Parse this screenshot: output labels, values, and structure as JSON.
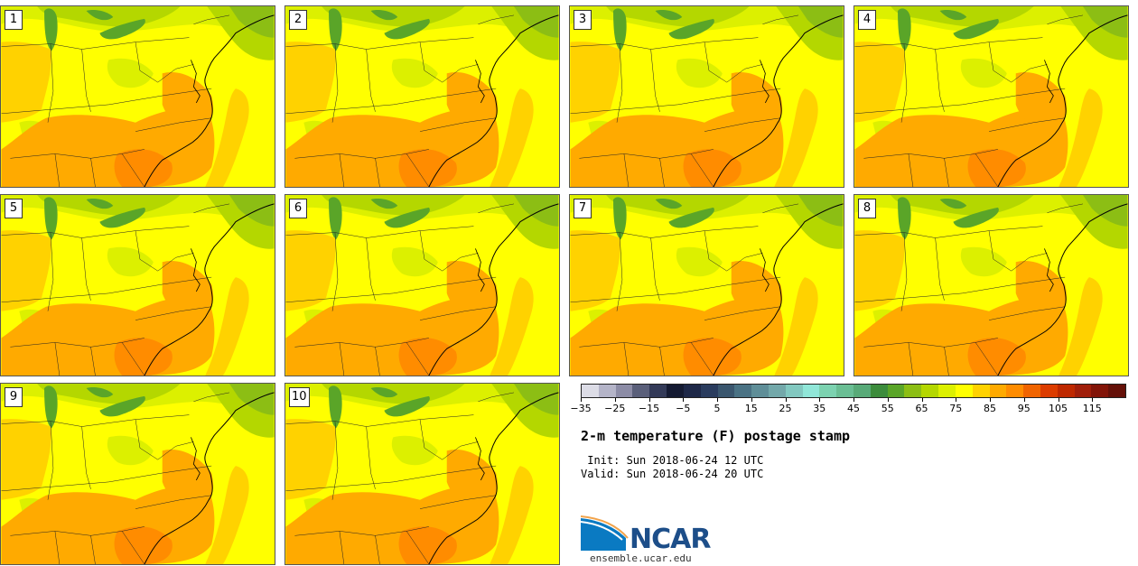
{
  "panels": [
    {
      "label": "1"
    },
    {
      "label": "2"
    },
    {
      "label": "3"
    },
    {
      "label": "4"
    },
    {
      "label": "5"
    },
    {
      "label": "6"
    },
    {
      "label": "7"
    },
    {
      "label": "8"
    },
    {
      "label": "9"
    },
    {
      "label": "10"
    }
  ],
  "legend": {
    "colors": [
      "#dcdce6",
      "#b4b4c8",
      "#8c8ca6",
      "#5a5f7a",
      "#333a58",
      "#141a32",
      "#1e2848",
      "#2a3c5e",
      "#3a566e",
      "#4a7284",
      "#5f8e98",
      "#73a8aa",
      "#82c8c0",
      "#90e6d8",
      "#7cd2b0",
      "#6abe94",
      "#58aa78",
      "#3c8c3c",
      "#5aa528",
      "#8cbe14",
      "#b4d700",
      "#dcf000",
      "#ffff00",
      "#ffd200",
      "#ffaa00",
      "#ff8c00",
      "#f06400",
      "#dc3c00",
      "#be2800",
      "#a01e0a",
      "#821408",
      "#641008"
    ],
    "tick_labels": [
      "−35",
      "−25",
      "−15",
      "−5",
      "5",
      "15",
      "25",
      "35",
      "45",
      "55",
      "65",
      "75",
      "85",
      "95",
      "105",
      "115"
    ]
  },
  "title": "2-m temperature (F) postage stamp",
  "init_line": " Init: Sun 2018-06-24 12 UTC",
  "valid_line": "Valid: Sun 2018-06-24 20 UTC",
  "logo_text": "NCAR",
  "site": "ensemble.ucar.edu"
}
